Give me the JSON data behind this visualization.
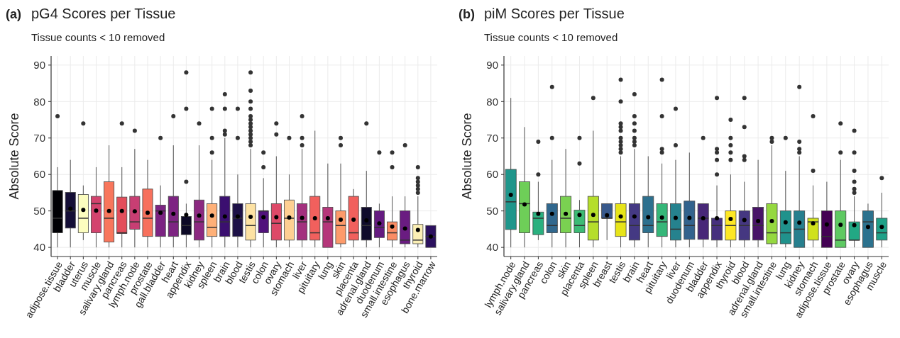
{
  "chart_data": [
    {
      "type": "box",
      "title": "pG4 Scores per Tissue",
      "subtitle": "Tissue counts < 10 removed",
      "annotations": [
        "(a)"
      ],
      "ylabel": "Absolute Score",
      "ylim": [
        37.5,
        92.5
      ],
      "yticks": [
        40,
        50,
        60,
        70,
        80,
        90
      ],
      "grid": true,
      "categories": [
        "adipose.tissue",
        "bladder",
        "uterus",
        "muscle",
        "salivary.gland",
        "pancreas",
        "lymph.node",
        "prostate",
        "gall.bladder",
        "heart",
        "appendix",
        "kidney",
        "spleen",
        "brain",
        "blood",
        "testis",
        "colon",
        "ovary",
        "stomach",
        "liver",
        "pituitary",
        "lung",
        "skin",
        "placenta",
        "adrenal.gland",
        "duodenum",
        "small.intestine",
        "esophagus",
        "thyroid",
        "bone.marrow"
      ],
      "colors": [
        "#000004",
        "#140e36",
        "#fcfdbf",
        "#d3436e",
        "#f8765c",
        "#e34e5b",
        "#c83e73",
        "#f7705c",
        "#7b2382",
        "#7d2482",
        "#0c0926",
        "#8c2981",
        "#feb078",
        "#3b0f70",
        "#1d1147",
        "#fde2a3",
        "#51127c",
        "#de4968",
        "#fecf92",
        "#a3307e",
        "#f1605d",
        "#b5367a",
        "#fd9a6a",
        "#f1605d",
        "#0f0b2b",
        "#641a80",
        "#fa8c64",
        "#6a1c81",
        "#fcf0b5",
        "#2c115f"
      ],
      "boxes": [
        {
          "low": 40,
          "q1": 44,
          "median": 48,
          "q3": 55.6,
          "high": 62,
          "outliers": [
            76
          ]
        },
        {
          "low": 40,
          "q1": 45.3,
          "median": 50,
          "q3": 55.1,
          "high": 64,
          "mean": 50.6
        },
        {
          "low": 42,
          "q1": 44,
          "median": 48,
          "q3": 54.5,
          "high": 57,
          "mean": 50.3,
          "outliers": [
            74
          ]
        },
        {
          "low": 40,
          "q1": 44,
          "median": 52,
          "q3": 54,
          "high": 62,
          "mean": 50.1
        },
        {
          "low": 40,
          "q1": 41.5,
          "median": 48,
          "q3": 58,
          "high": 68,
          "mean": 50
        },
        {
          "low": 40,
          "q1": 43.8,
          "median": 44,
          "q3": 53.8,
          "high": 62,
          "mean": 50,
          "outliers": [
            74
          ]
        },
        {
          "low": 40,
          "q1": 45,
          "median": 47,
          "q3": 54,
          "high": 67,
          "mean": 49.9,
          "outliers": [
            72
          ]
        },
        {
          "low": 40,
          "q1": 43,
          "median": 48,
          "q3": 56,
          "high": 64,
          "mean": 49.5
        },
        {
          "low": 40,
          "q1": 43,
          "median": 50,
          "q3": 51.6,
          "high": 57,
          "mean": 49.5,
          "outliers": [
            70
          ]
        },
        {
          "low": 40,
          "q1": 43,
          "median": 47,
          "q3": 54,
          "high": 68,
          "mean": 49.2,
          "outliers": [
            76
          ]
        },
        {
          "low": 40,
          "q1": 43.5,
          "median": 46,
          "q3": 48.5,
          "high": 52,
          "mean": 48.9,
          "outliers": [
            58,
            78,
            88
          ]
        },
        {
          "low": 40,
          "q1": 42,
          "median": 47,
          "q3": 53,
          "high": 68,
          "mean": 48.7,
          "outliers": [
            74
          ]
        },
        {
          "low": 40,
          "q1": 43,
          "median": 45.5,
          "q3": 52,
          "high": 64,
          "mean": 48.7,
          "outliers": [
            66,
            70,
            78
          ]
        },
        {
          "low": 40,
          "q1": 43,
          "median": 47,
          "q3": 54,
          "high": 70,
          "mean": 48.5,
          "outliers": [
            71,
            72,
            78,
            82
          ]
        },
        {
          "low": 40,
          "q1": 43,
          "median": 48,
          "q3": 52,
          "high": 60,
          "mean": 48.5,
          "outliers": [
            70,
            78
          ]
        },
        {
          "low": 40,
          "q1": 42,
          "median": 46,
          "q3": 52,
          "high": 67,
          "mean": 48.4,
          "outliers": [
            68,
            69,
            70,
            71,
            72,
            73,
            74,
            75,
            76,
            78,
            80,
            83,
            88
          ]
        },
        {
          "low": 40,
          "q1": 44,
          "median": 50,
          "q3": 50,
          "high": 59,
          "mean": 48.3,
          "outliers": [
            62,
            66
          ]
        },
        {
          "low": 40,
          "q1": 42,
          "median": 46.6,
          "q3": 52,
          "high": 65,
          "mean": 48.3,
          "outliers": [
            71,
            74
          ]
        },
        {
          "low": 40,
          "q1": 42,
          "median": 48,
          "q3": 53,
          "high": 60,
          "mean": 48.2,
          "outliers": [
            70
          ]
        },
        {
          "low": 40,
          "q1": 42,
          "median": 47,
          "q3": 52,
          "high": 67,
          "mean": 48.1,
          "outliers": [
            68,
            70,
            76
          ]
        },
        {
          "low": 40,
          "q1": 42,
          "median": 44,
          "q3": 54,
          "high": 72,
          "mean": 48
        },
        {
          "low": 40,
          "q1": 40,
          "median": 47,
          "q3": 51,
          "high": 63,
          "mean": 48
        },
        {
          "low": 40,
          "q1": 41,
          "median": 46,
          "q3": 50,
          "high": 63,
          "mean": 47.6,
          "outliers": [
            68,
            70
          ]
        },
        {
          "low": 40,
          "q1": 42,
          "median": 44,
          "q3": 54,
          "high": 56,
          "mean": 47.6
        },
        {
          "low": 40,
          "q1": 42,
          "median": 46,
          "q3": 51,
          "high": 61,
          "mean": 47.4,
          "outliers": [
            74
          ]
        },
        {
          "low": 40,
          "q1": 42.7,
          "median": 45.5,
          "q3": 50,
          "high": 52,
          "mean": 46.6,
          "outliers": [
            66
          ]
        },
        {
          "low": 40,
          "q1": 42,
          "median": 44,
          "q3": 47,
          "high": 54,
          "mean": 45.7,
          "outliers": [
            62,
            66
          ]
        },
        {
          "low": 40,
          "q1": 41,
          "median": 42,
          "q3": 50,
          "high": 54,
          "mean": 45.2,
          "outliers": [
            68
          ]
        },
        {
          "low": 40,
          "q1": 41,
          "median": 42,
          "q3": 46.3,
          "high": 54,
          "mean": 44.8,
          "outliers": [
            55,
            56,
            57,
            58,
            59,
            62
          ]
        },
        {
          "low": 40,
          "q1": 40,
          "median": 43,
          "q3": 46,
          "high": 46,
          "mean": 43
        }
      ]
    },
    {
      "type": "box",
      "title": "piM Scores per Tissue",
      "subtitle": "Tissue counts < 10 removed",
      "annotations": [
        "(b)"
      ],
      "ylabel": "Absolute Score",
      "ylim": [
        37.5,
        92.5
      ],
      "yticks": [
        40,
        50,
        60,
        70,
        80,
        90
      ],
      "grid": true,
      "categories": [
        "lymph.node",
        "salivary.gland",
        "pancreas",
        "colon",
        "skin",
        "placenta",
        "spleen",
        "breast",
        "testis",
        "brain",
        "heart",
        "pituitary",
        "liver",
        "duodenum",
        "bladder",
        "appendix",
        "thyroid",
        "blood",
        "adrenal.gland",
        "small.intestine",
        "lung",
        "kidney",
        "stomach",
        "adipose.tissue",
        "prostate",
        "ovary",
        "esophagus",
        "muscle"
      ],
      "colors": [
        "#1f968b",
        "#6ece58",
        "#2ab07f",
        "#31688e",
        "#7ad151",
        "#3cbb75",
        "#b5de2b",
        "#38598c",
        "#e7e419",
        "#443983",
        "#2d708e",
        "#35b779",
        "#26828e",
        "#33638d",
        "#482878",
        "#46307e",
        "#fde725",
        "#453781",
        "#481467",
        "#95d840",
        "#20928c",
        "#277f8e",
        "#d0e11c",
        "#440154",
        "#5ec962",
        "#22a884",
        "#2c728e",
        "#1fa188"
      ],
      "boxes": [
        {
          "low": 40,
          "q1": 44.9,
          "median": 52.5,
          "q3": 61.4,
          "high": 81,
          "mean": 54.4
        },
        {
          "low": 40,
          "q1": 44,
          "median": 52,
          "q3": 58,
          "high": 73,
          "mean": 51.8
        },
        {
          "low": 42,
          "q1": 43.5,
          "median": 48,
          "q3": 49.7,
          "high": 58,
          "mean": 49.2,
          "outliers": [
            60,
            69
          ]
        },
        {
          "low": 40,
          "q1": 44,
          "median": 46,
          "q3": 52,
          "high": 64,
          "mean": 49.2,
          "outliers": [
            70,
            84
          ]
        },
        {
          "low": 40,
          "q1": 44,
          "median": 48,
          "q3": 54,
          "high": 67,
          "mean": 49.2
        },
        {
          "low": 40,
          "q1": 44,
          "median": 46,
          "q3": 50.2,
          "high": 53,
          "mean": 48.9,
          "outliers": [
            63,
            70
          ]
        },
        {
          "low": 40,
          "q1": 42,
          "median": 47,
          "q3": 54,
          "high": 72,
          "mean": 48.9,
          "outliers": [
            81
          ]
        },
        {
          "low": 42,
          "q1": 48,
          "median": 48,
          "q3": 52,
          "high": 52,
          "mean": 48.8
        },
        {
          "low": 40,
          "q1": 43,
          "median": 47,
          "q3": 52,
          "high": 65,
          "mean": 48.5,
          "outliers": [
            66,
            67,
            68,
            69,
            70,
            72,
            73,
            74,
            80,
            86
          ]
        },
        {
          "low": 40,
          "q1": 42,
          "median": 46,
          "q3": 52,
          "high": 67,
          "mean": 48.5,
          "outliers": [
            68,
            69,
            70,
            72,
            74,
            76,
            82
          ]
        },
        {
          "low": 40,
          "q1": 44,
          "median": 46,
          "q3": 54,
          "high": 65,
          "mean": 48.3
        },
        {
          "low": 40,
          "q1": 43,
          "median": 47,
          "q3": 52,
          "high": 63,
          "mean": 48.2,
          "outliers": [
            66,
            67,
            76,
            86
          ]
        },
        {
          "low": 40,
          "q1": 42,
          "median": 45,
          "q3": 52,
          "high": 64,
          "mean": 48.1,
          "outliers": [
            68,
            78
          ]
        },
        {
          "low": 40,
          "q1": 42.2,
          "median": 46,
          "q3": 52.7,
          "high": 66,
          "mean": 48.1
        },
        {
          "low": 40,
          "q1": 42.2,
          "median": 48,
          "q3": 52,
          "high": 52,
          "mean": 48,
          "outliers": [
            70
          ]
        },
        {
          "low": 40,
          "q1": 42,
          "median": 46,
          "q3": 48,
          "high": 57,
          "mean": 48,
          "outliers": [
            60,
            64,
            66,
            67,
            81
          ]
        },
        {
          "low": 40,
          "q1": 42,
          "median": 46,
          "q3": 50,
          "high": 60,
          "mean": 47.8,
          "outliers": [
            64,
            66,
            68,
            70,
            75
          ]
        },
        {
          "low": 40,
          "q1": 42,
          "median": 46,
          "q3": 50,
          "high": 58,
          "mean": 47.5,
          "outliers": [
            64,
            65,
            73,
            81
          ]
        },
        {
          "low": 40,
          "q1": 42,
          "median": 46,
          "q3": 51,
          "high": 64,
          "mean": 47.2
        },
        {
          "low": 40,
          "q1": 41,
          "median": 44,
          "q3": 52,
          "high": 68,
          "mean": 47.2,
          "outliers": [
            69,
            70
          ]
        },
        {
          "low": 40,
          "q1": 41,
          "median": 44,
          "q3": 50,
          "high": 61,
          "mean": 46.9,
          "outliers": [
            70
          ]
        },
        {
          "low": 40,
          "q1": 40,
          "median": 45,
          "q3": 50,
          "high": 65,
          "mean": 46.8,
          "outliers": [
            66,
            67,
            69,
            84
          ]
        },
        {
          "low": 40,
          "q1": 42,
          "median": 47,
          "q3": 48,
          "high": 57,
          "mean": 46.6,
          "outliers": [
            61,
            76
          ]
        },
        {
          "low": 40,
          "q1": 40,
          "median": 43,
          "q3": 50,
          "high": 58,
          "mean": 46.3
        },
        {
          "low": 40,
          "q1": 40,
          "median": 42,
          "q3": 50,
          "high": 64,
          "mean": 46.2,
          "outliers": [
            66,
            74
          ]
        },
        {
          "low": 40,
          "q1": 42,
          "median": 42,
          "q3": 47,
          "high": 54,
          "mean": 46.1,
          "outliers": [
            55,
            56,
            58,
            61,
            66,
            72
          ]
        },
        {
          "low": 40,
          "q1": 40,
          "median": 47,
          "q3": 50,
          "high": 52,
          "mean": 45.6
        },
        {
          "low": 40,
          "q1": 42,
          "median": 44,
          "q3": 48,
          "high": 55,
          "mean": 45.6,
          "outliers": [
            59
          ]
        }
      ]
    }
  ]
}
